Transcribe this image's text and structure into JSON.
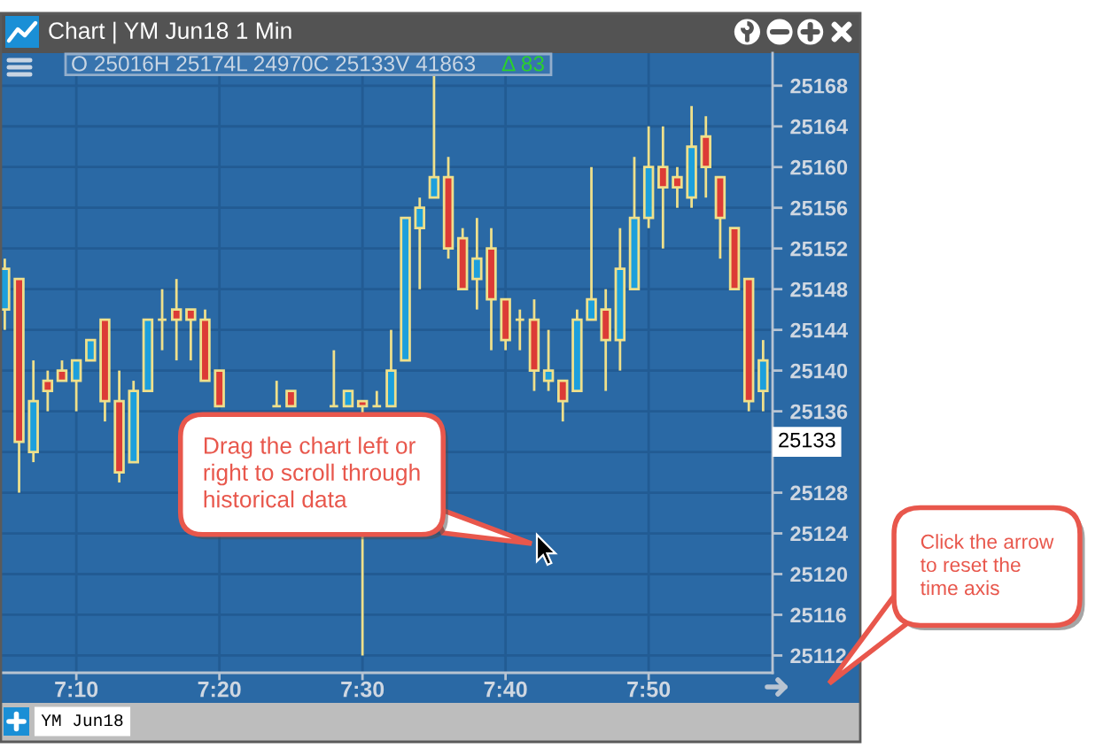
{
  "chart_data": {
    "type": "candlestick",
    "title": "Chart | YM Jun18 1 Min",
    "subtitle": "O 25016H 25174L 24970C 25133V 41863",
    "categories": [
      null,
      null,
      null,
      null,
      null,
      "7:10",
      null,
      null,
      null,
      null,
      null,
      null,
      null,
      null,
      null,
      "7:20",
      null,
      null,
      null,
      null,
      null,
      null,
      null,
      null,
      null,
      "7:30",
      null,
      null,
      null,
      null,
      null,
      null,
      null,
      null,
      null,
      "7:40",
      null,
      null,
      null,
      null,
      null,
      null,
      null,
      null,
      null,
      "7:50",
      null,
      null,
      null,
      null,
      null,
      null,
      null,
      null
    ],
    "ohlc": [
      [
        25146,
        25151,
        25144,
        25150
      ],
      [
        25149,
        25149,
        25128,
        25133
      ],
      [
        25132,
        25141,
        25131,
        25137
      ],
      [
        25139,
        25140,
        25136,
        25138
      ],
      [
        25140,
        25141,
        25139,
        25139
      ],
      [
        25139,
        25141,
        25136,
        25141
      ],
      [
        25141,
        25143,
        25141,
        25143
      ],
      [
        25145,
        25145,
        25135,
        25137
      ],
      [
        25137,
        25140,
        25129,
        25130
      ],
      [
        25131,
        25139,
        25131,
        25138
      ],
      [
        25138,
        25145,
        25138,
        25145
      ],
      [
        25145,
        25148,
        25142,
        25145
      ],
      [
        25146,
        25149,
        25141,
        25145
      ],
      [
        25146,
        25146,
        25141,
        25145
      ],
      [
        25145,
        25146,
        25139,
        25139
      ],
      [
        25140,
        25140,
        25136.5,
        25136.5
      ],
      null,
      null,
      null,
      [
        25136.5,
        25139,
        25136.5,
        25136.5
      ],
      [
        25138,
        25138,
        25136.5,
        25136.5
      ],
      null,
      null,
      [
        25136.5,
        25142,
        25136.5,
        25136.5
      ],
      [
        25136.5,
        25138,
        25136.5,
        25138
      ],
      [
        25137,
        25137,
        25112,
        25136.5
      ],
      [
        25136.5,
        25138,
        25136.5,
        25136.5
      ],
      [
        25136.5,
        25144,
        25136.5,
        25140
      ],
      [
        25141,
        25155,
        25141,
        25155
      ],
      [
        25154,
        25157,
        25148,
        25156
      ],
      [
        25157,
        25169,
        25157,
        25159
      ],
      [
        25159,
        25161,
        25151,
        25152
      ],
      [
        25153,
        25154,
        25148,
        25148
      ],
      [
        25149,
        25155,
        25146,
        25151
      ],
      [
        25152,
        25154,
        25142,
        25147
      ],
      [
        25147,
        25147,
        25142,
        25143
      ],
      [
        25145,
        25146,
        25142,
        25145
      ],
      [
        25145,
        25147,
        25138,
        25140
      ],
      [
        25139,
        25144,
        25138,
        25140
      ],
      [
        25139,
        25139,
        25135,
        25137
      ],
      [
        25138,
        25146,
        25138,
        25145
      ],
      [
        25145,
        25160,
        25145,
        25147
      ],
      [
        25146,
        25148,
        25138,
        25143
      ],
      [
        25143,
        25154,
        25140,
        25150
      ],
      [
        25148,
        25161,
        25148,
        25155
      ],
      [
        25155,
        25164,
        25154,
        25160
      ],
      [
        25160,
        25164,
        25152,
        25158
      ],
      [
        25159,
        25160,
        25156,
        25158
      ],
      [
        25157,
        25166,
        25156,
        25162
      ],
      [
        25163,
        25165,
        25157,
        25160
      ],
      [
        25159,
        25159,
        25151,
        25155
      ],
      [
        25154,
        25154,
        25148,
        25148
      ],
      [
        25149,
        25149,
        25136,
        25137
      ],
      [
        25138,
        25143,
        25136,
        25141
      ]
    ],
    "colors": [
      "#1c9fdc",
      "#dc3b36",
      "#1c9fdc",
      "#dc3b36",
      "#dc3b36",
      "#1c9fdc",
      "#1c9fdc",
      "#dc3b36",
      "#dc3b36",
      "#1c9fdc",
      "#1c9fdc",
      "#efe08b",
      "#dc3b36",
      "#dc3b36",
      "#dc3b36",
      "#dc3b36",
      null,
      null,
      null,
      "#efe08b",
      "#dc3b36",
      null,
      null,
      "#efe08b",
      "#1c9fdc",
      "#dc3b36",
      "#efe08b",
      "#1c9fdc",
      "#1c9fdc",
      "#1c9fdc",
      "#1c9fdc",
      "#dc3b36",
      "#dc3b36",
      "#1c9fdc",
      "#dc3b36",
      "#dc3b36",
      "#efe08b",
      "#dc3b36",
      "#1c9fdc",
      "#dc3b36",
      "#1c9fdc",
      "#1c9fdc",
      "#dc3b36",
      "#1c9fdc",
      "#1c9fdc",
      "#1c9fdc",
      "#dc3b36",
      "#dc3b36",
      "#1c9fdc",
      "#dc3b36",
      "#dc3b36",
      "#dc3b36",
      "#dc3b36",
      "#1c9fdc"
    ],
    "color": "#efe08b",
    "ylim": [
      25110.3,
      25171.2
    ],
    "yticks": [
      25112,
      25116,
      25120,
      25124,
      25128,
      {
        "value": 25132,
        "label": null
      },
      25136,
      25140,
      25144,
      25148,
      25152,
      25156,
      25160,
      25164,
      25168
    ],
    "grid": true,
    "annotations": [
      "Drag the chart left or\nright to scroll through\nhistorical data",
      "Click the arrow\nto reset the\ntime axis",
      {
        "text": "25133",
        "y": 25133
      },
      "Δ 83",
      "YM Jun18"
    ]
  }
}
